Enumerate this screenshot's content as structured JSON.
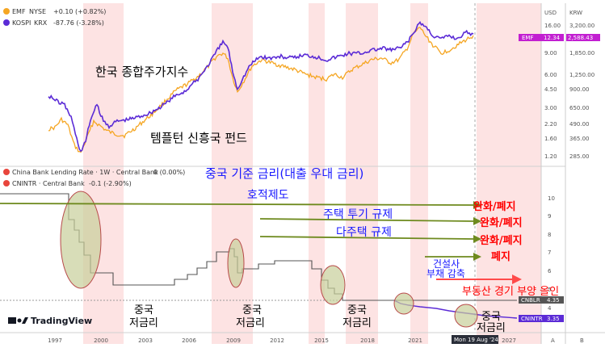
{
  "chart_data": [
    {
      "type": "line",
      "panel": "top",
      "series": [
        {
          "name": "EMF",
          "color": "#f5a623"
        },
        {
          "name": "KOSPI",
          "color": "#5b2bd6"
        }
      ],
      "legend": [
        {
          "symbol": "EMF",
          "exchange": "NYSE",
          "change": "+0.10 (+0.82%)",
          "color": "#f5a623"
        },
        {
          "symbol": "KOSPI",
          "exchange": "KRX",
          "change": "-87.76 (-3.28%)",
          "color": "#5b2bd6"
        }
      ],
      "left_scale": {
        "label": "USD",
        "ticks": [
          "16.00",
          "12.34",
          "9.00",
          "6.00",
          "4.50",
          "3.00",
          "2.20",
          "1.60",
          "1.20"
        ]
      },
      "right_scale": {
        "label": "KRW",
        "ticks": [
          "3,200.00",
          "2,588.43",
          "1,850.00",
          "1,250.00",
          "900.00",
          "650.00",
          "490.00",
          "365.00",
          "285.00"
        ]
      },
      "price_tags": [
        {
          "text": "EMF",
          "value": "12.34",
          "color": "#c21fd1"
        },
        {
          "text": "",
          "value": "2,588.43",
          "color": "#c21fd1"
        }
      ]
    },
    {
      "type": "line",
      "panel": "bottom",
      "series": [
        {
          "name": "China Bank Lending Rate · 1W · Central Bank",
          "color": "#555555"
        },
        {
          "name": "CNINTR · Central Bank",
          "color": "#5b2bd6"
        }
      ],
      "legend": [
        {
          "symbol": "China Bank Lending Rate · 1W · Central Bank",
          "value": "0 (0.00%)",
          "color": "#e8453c"
        },
        {
          "symbol": "CNINTR · Central Bank",
          "value": "-0.1 (-2.90%)",
          "color": "#e8453c"
        }
      ],
      "yticks": [
        "10",
        "9",
        "8",
        "7",
        "6",
        "5",
        "4"
      ],
      "price_tags": [
        {
          "text": "CNBLR",
          "value": "4.35",
          "color": "#555555"
        },
        {
          "text": "CNINTR",
          "value": "3.35",
          "color": "#5b2bd6"
        }
      ]
    }
  ],
  "x_axis": {
    "ticks": [
      "1997",
      "2000",
      "2003",
      "2006",
      "2009",
      "2012",
      "2015",
      "2018",
      "2021",
      "2027"
    ],
    "cursor_label": "Mon 19 Aug '24"
  },
  "annotations": {
    "kospi_label": "한국 종합주가지수",
    "emf_label": "템플턴 신흥국 펀드",
    "china_rate_title": "중국 기준 금리(대출 우대 금리)",
    "hukou": "호적제도",
    "housing_speculation": "주택 투기 규제",
    "multi_home": "다주택 규제",
    "developer_debt_line1": "건설사",
    "developer_debt_line2": "부채 감축",
    "relaxed_1": "완화/폐지",
    "relaxed_2": "완화/폐지",
    "relaxed_3": "완화/폐지",
    "abolished": "폐지",
    "stimulus": "부동산 경기 부양 올인",
    "low_rate_1": [
      "중국",
      "저금리"
    ],
    "low_rate_2": [
      "중국",
      "저금리"
    ],
    "low_rate_3": [
      "중국",
      "저금리"
    ],
    "low_rate_4": [
      "중국",
      "저금리"
    ]
  },
  "watermark": "TradingView",
  "footer_letters": [
    "A",
    "B"
  ],
  "colors": {
    "band": "#fde3e3",
    "arrow": "#6e8a1e",
    "ellipse_fill": "#c7cf9a",
    "ellipse_stroke": "#b84a4a"
  }
}
